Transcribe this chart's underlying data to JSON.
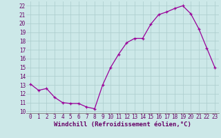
{
  "x": [
    0,
    1,
    2,
    3,
    4,
    5,
    6,
    7,
    8,
    9,
    10,
    11,
    12,
    13,
    14,
    15,
    16,
    17,
    18,
    19,
    20,
    21,
    22,
    23
  ],
  "y": [
    13.1,
    12.4,
    12.6,
    11.6,
    11.0,
    10.9,
    10.9,
    10.5,
    10.3,
    13.0,
    15.0,
    16.5,
    17.8,
    18.3,
    18.3,
    19.9,
    21.0,
    21.3,
    21.7,
    22.0,
    21.1,
    19.4,
    17.2,
    15.0
  ],
  "line_color": "#990099",
  "marker": "+",
  "bg_color": "#cce8e8",
  "grid_color": "#aacccc",
  "xlabel": "Windchill (Refroidissement éolien,°C)",
  "ylim": [
    9.8,
    22.5
  ],
  "xlim": [
    -0.5,
    23.5
  ],
  "yticks": [
    10,
    11,
    12,
    13,
    14,
    15,
    16,
    17,
    18,
    19,
    20,
    21,
    22
  ],
  "xticks": [
    0,
    1,
    2,
    3,
    4,
    5,
    6,
    7,
    8,
    9,
    10,
    11,
    12,
    13,
    14,
    15,
    16,
    17,
    18,
    19,
    20,
    21,
    22,
    23
  ],
  "tick_fontsize": 5.5,
  "xlabel_fontsize": 6.5,
  "label_color": "#660066"
}
